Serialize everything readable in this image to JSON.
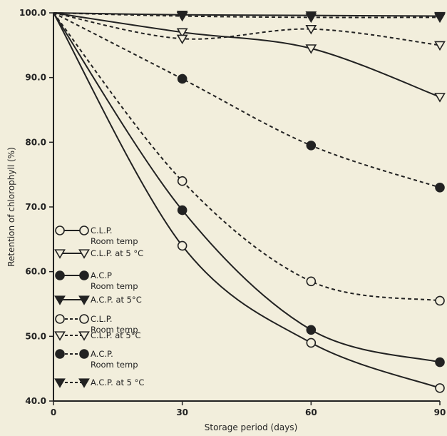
{
  "chart_data": {
    "type": "line",
    "title": "",
    "xlabel": "Storage  period (days)",
    "ylabel": "Retention  of  chlorophyll (%)",
    "xlim": [
      0,
      90
    ],
    "ylim": [
      40,
      100
    ],
    "x_ticks": [
      0,
      30,
      60,
      90
    ],
    "x_tick_labels": [
      "0",
      "30",
      "60",
      "90"
    ],
    "y_ticks": [
      40,
      50,
      60,
      70,
      80,
      90,
      100
    ],
    "y_tick_labels": [
      "40.0",
      "50.0",
      "60.0",
      "70.0",
      "80.0",
      "90.0",
      "100.0"
    ],
    "grid": false,
    "legend_position": "left",
    "x": [
      0,
      30,
      60,
      90
    ],
    "series": [
      {
        "name": "C.L.P. Room temp",
        "values": [
          100,
          64,
          49,
          42
        ],
        "line": "solid",
        "marker": "open-circle"
      },
      {
        "name": "C.L.P. at 5 °C",
        "values": [
          100,
          97,
          94.5,
          87
        ],
        "line": "solid",
        "marker": "open-triangle"
      },
      {
        "name": "A.C.P. Room temp",
        "values": [
          100,
          69.5,
          51,
          46
        ],
        "line": "solid",
        "marker": "filled-circle"
      },
      {
        "name": "A.C.P. at 5°C",
        "values": [
          100,
          99.7,
          99.6,
          99.5
        ],
        "line": "solid",
        "marker": "filled-triangle"
      },
      {
        "name": "C.L.P. Room temp",
        "values": [
          100,
          74,
          58.5,
          55.5
        ],
        "line": "dashed",
        "marker": "open-circle"
      },
      {
        "name": "C.L.P. at 5°C",
        "values": [
          100,
          96,
          97.5,
          95
        ],
        "line": "dashed",
        "marker": "open-triangle"
      },
      {
        "name": "A.C.P. Room temp",
        "values": [
          100,
          89.8,
          79.5,
          73
        ],
        "line": "dashed",
        "marker": "filled-circle"
      },
      {
        "name": "A.C.P. at 5 °C",
        "values": [
          100,
          99.5,
          99.3,
          99.3
        ],
        "line": "dashed",
        "marker": "filled-triangle"
      }
    ],
    "legend": [
      {
        "line1": "C.L.P.",
        "line2": "Room temp"
      },
      {
        "line1": "C.L.P. at 5 °C",
        "line2": ""
      },
      {
        "line1": "A.C.P",
        "line2": "Room temp"
      },
      {
        "line1": "A.C.P. at 5°C",
        "line2": ""
      },
      {
        "line1": "C.L.P.",
        "line2": "Room temp"
      },
      {
        "line1": "C.L.P. at 5°C",
        "line2": ""
      },
      {
        "line1": "A.C.P.",
        "line2": "Room temp"
      },
      {
        "line1": "A.C.P. at 5 °C",
        "line2": ""
      }
    ],
    "colors": {
      "ink": "#222222",
      "background": "#f2eedc"
    }
  }
}
